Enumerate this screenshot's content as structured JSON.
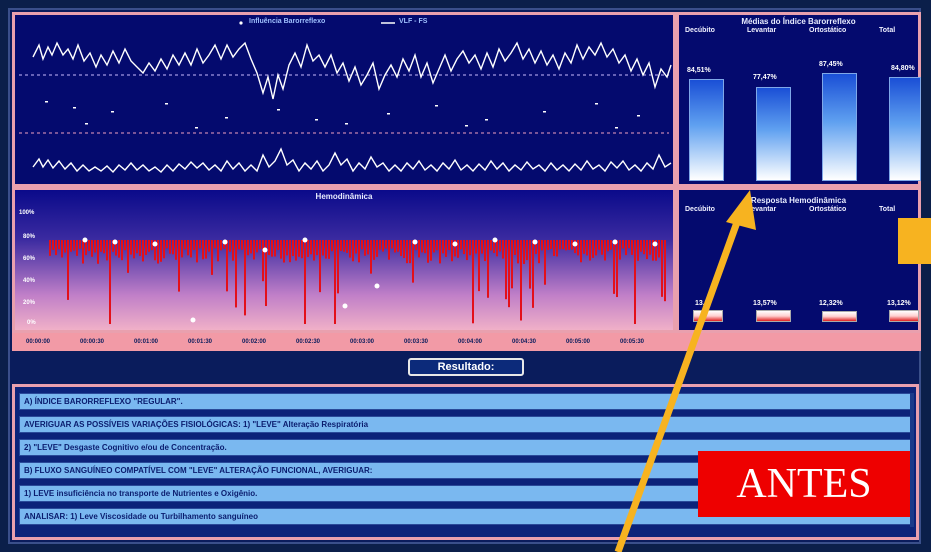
{
  "baro_panel": {
    "legend_influence": "Influência Barorreflexo",
    "legend_vlf": "VLF - FS"
  },
  "medias_panel": {
    "title": "Médias do Índice Barorreflexo",
    "columns": [
      "Decúbito",
      "Levantar",
      "Ortostático",
      "Total"
    ],
    "values": [
      "84,51%",
      "77,47%",
      "87,45%",
      "84,80%"
    ],
    "levels": [
      0.84,
      0.77,
      0.87,
      0.85
    ]
  },
  "hemo_panel": {
    "title": "Hemodinâmica",
    "y_ticks": [
      "100%",
      "80%",
      "60%",
      "40%",
      "20%",
      "0%"
    ],
    "x_ticks": [
      "00:00:00",
      "00:00:30",
      "00:01:00",
      "00:01:30",
      "00:02:00",
      "00:02:30",
      "00:03:00",
      "00:03:30",
      "00:04:00",
      "00:04:30",
      "00:05:00",
      "00:05:30"
    ]
  },
  "resposta_panel": {
    "title": "Resposta Hemodinâmica",
    "columns": [
      "Decúbito",
      "Levantar",
      "Ortostático",
      "Total"
    ],
    "values": [
      "13,%",
      "13,57%",
      "12,32%",
      "13,12%"
    ]
  },
  "result_button": "Resultado:",
  "results": [
    "A) ÍNDICE BARORREFLEXO \"REGULAR\".",
    "AVERIGUAR AS POSSÍVEIS VARIAÇÕES FISIOLÓGICAS: 1) \"LEVE\" Alteração Respiratória",
    "2) \"LEVE\" Desgaste Cognitivo e/ou de Concentração.",
    "B) FLUXO SANGUÍNEO COMPATÍVEL COM \"LEVE\" ALTERAÇÃO FUNCIONAL, AVERIGUAR:",
    "1) LEVE insuficiência no transporte de Nutrientes e Oxigênio.",
    "ANALISAR: 1) Leve Viscosidade ou Turbilhamento sanguíneo"
  ],
  "overlay": {
    "label": "ANTES",
    "label_bg": "#ee0000",
    "arrow_color": "#f7b320"
  }
}
